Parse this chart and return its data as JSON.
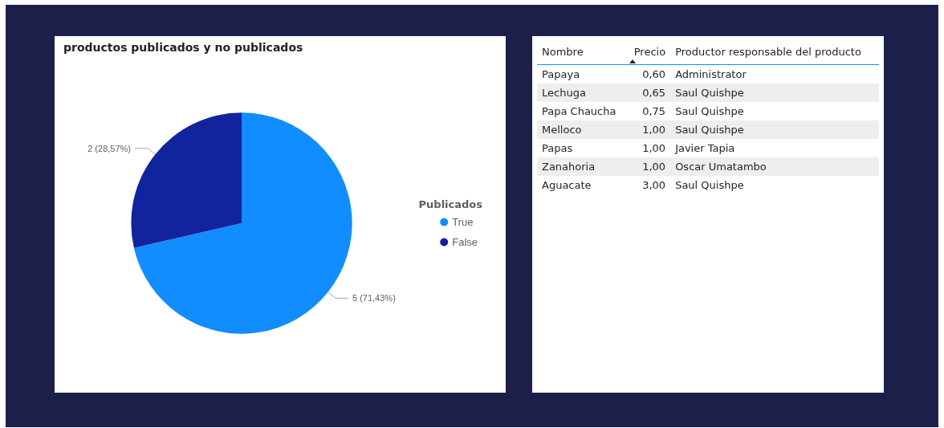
{
  "chart_data": [
    {
      "type": "pie",
      "title": "productos publicados y no publicados",
      "legend_title": "Publicados",
      "legend": "right",
      "categories": [
        "True",
        "False"
      ],
      "values": [
        5,
        2
      ],
      "colors": [
        "#118dff",
        "#12239e"
      ],
      "value_labels": [
        "5 (71,43%)",
        "2 (28,57%)"
      ]
    },
    {
      "type": "other",
      "annotations": [
        "Nombre",
        "Precio",
        "Productor responsable del producto",
        "Administrator",
        "Saul Quishpe",
        "Saul Quishpe",
        "Saul Quishpe",
        "Javier Tapia",
        "Oscar Umatambo",
        "Saul Quishpe"
      ],
      "categories": [
        "Papaya",
        "Lechuga",
        "Papa Chaucha",
        "Melloco",
        "Papas",
        "Zanahoria",
        "Aguacate"
      ],
      "value_labels": [
        "0,60",
        "0,65",
        "0,75",
        "1,00",
        "1,00",
        "1,00",
        "3,00"
      ]
    }
  ]
}
